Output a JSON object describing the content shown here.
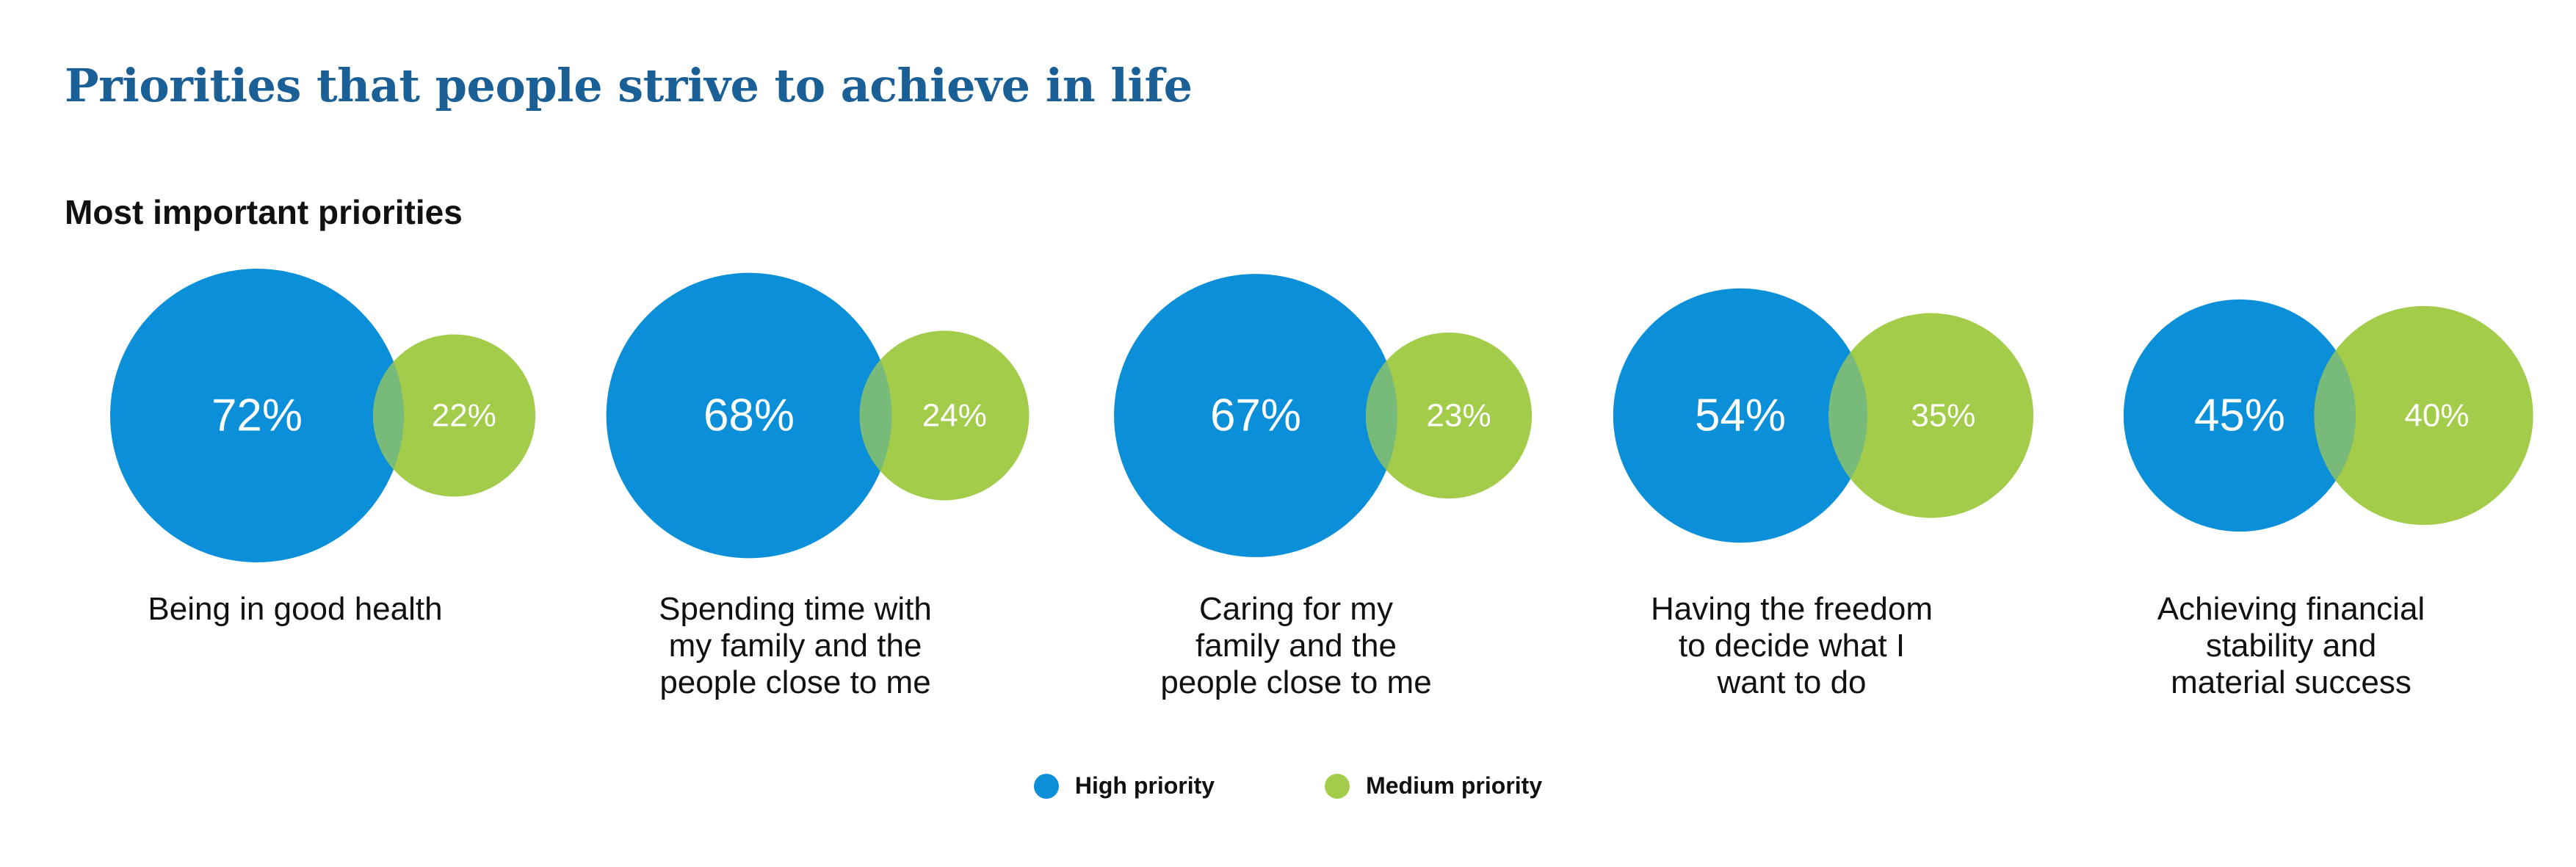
{
  "colors": {
    "high": "#0a8fd8",
    "medium": "#a2cc4a",
    "overlap": "#78ba7a"
  },
  "chart_data": {
    "type": "bubble",
    "title": "Priorities that people strive to achieve in life",
    "subtitle": "Most important priorities",
    "legend_position": "bottom-center",
    "series": [
      {
        "name": "High priority",
        "values": [
          72,
          68,
          67,
          54,
          45
        ]
      },
      {
        "name": "Medium priority",
        "values": [
          22,
          24,
          23,
          35,
          40
        ]
      }
    ],
    "categories": [
      {
        "lines": [
          "Being in good health"
        ]
      },
      {
        "lines": [
          "Spending time with",
          "my family and the",
          "people close to me"
        ]
      },
      {
        "lines": [
          "Caring for my",
          "family and the",
          "people close to me"
        ]
      },
      {
        "lines": [
          "Having the freedom",
          "to decide what I",
          "want to do"
        ]
      },
      {
        "lines": [
          "Achieving financial",
          "stability and",
          "material success"
        ]
      }
    ],
    "value_labels": {
      "high": [
        "72%",
        "68%",
        "67%",
        "54%",
        "45%"
      ],
      "medium": [
        "22%",
        "24%",
        "23%",
        "35%",
        "40%"
      ]
    }
  }
}
